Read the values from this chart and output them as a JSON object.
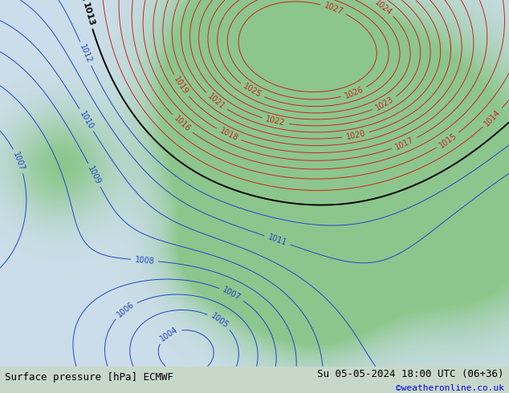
{
  "title_left": "Surface pressure [hPa] ECMWF",
  "title_right": "Su 05-05-2024 18:00 UTC (06+36)",
  "copyright": "©weatheronline.co.uk",
  "bg_color": "#d0e8d0",
  "land_color": "#90c890",
  "sea_color": "#d8e8f0",
  "isobar_blue_color": "#2244cc",
  "isobar_red_color": "#cc2222",
  "isobar_black_color": "#000000",
  "label_fontsize": 7,
  "footer_fontsize": 9,
  "copyright_fontsize": 8,
  "figsize": [
    6.34,
    4.9
  ],
  "dpi": 100,
  "pressure_min": 1003,
  "pressure_max": 1025,
  "black_isobar": 1013
}
